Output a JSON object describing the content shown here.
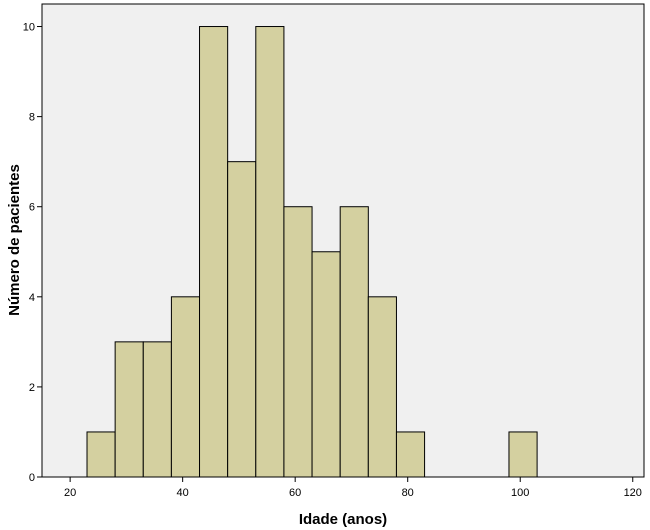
{
  "chart_data": {
    "type": "bar",
    "subtype": "histogram",
    "xlabel": "Idade (anos)",
    "ylabel": "Número de pacientes",
    "xlim": [
      15,
      122
    ],
    "ylim": [
      0,
      10.5
    ],
    "x_ticks": [
      20,
      40,
      60,
      80,
      100,
      120
    ],
    "y_ticks": [
      0,
      2,
      4,
      6,
      8,
      10
    ],
    "grid": false,
    "legend": "none",
    "bin_width": 5,
    "bins": [
      {
        "start": 23,
        "end": 28,
        "count": 1
      },
      {
        "start": 28,
        "end": 33,
        "count": 3
      },
      {
        "start": 33,
        "end": 38,
        "count": 3
      },
      {
        "start": 38,
        "end": 43,
        "count": 4
      },
      {
        "start": 43,
        "end": 48,
        "count": 10
      },
      {
        "start": 48,
        "end": 53,
        "count": 7
      },
      {
        "start": 53,
        "end": 58,
        "count": 10
      },
      {
        "start": 58,
        "end": 63,
        "count": 6
      },
      {
        "start": 63,
        "end": 68,
        "count": 5
      },
      {
        "start": 68,
        "end": 73,
        "count": 6
      },
      {
        "start": 73,
        "end": 78,
        "count": 4
      },
      {
        "start": 78,
        "end": 83,
        "count": 1
      },
      {
        "start": 98,
        "end": 103,
        "count": 1
      }
    ],
    "colors": {
      "bar_fill": "#d4d0a0",
      "bar_stroke": "#000000",
      "plot_background": "#f0f0f0"
    }
  }
}
